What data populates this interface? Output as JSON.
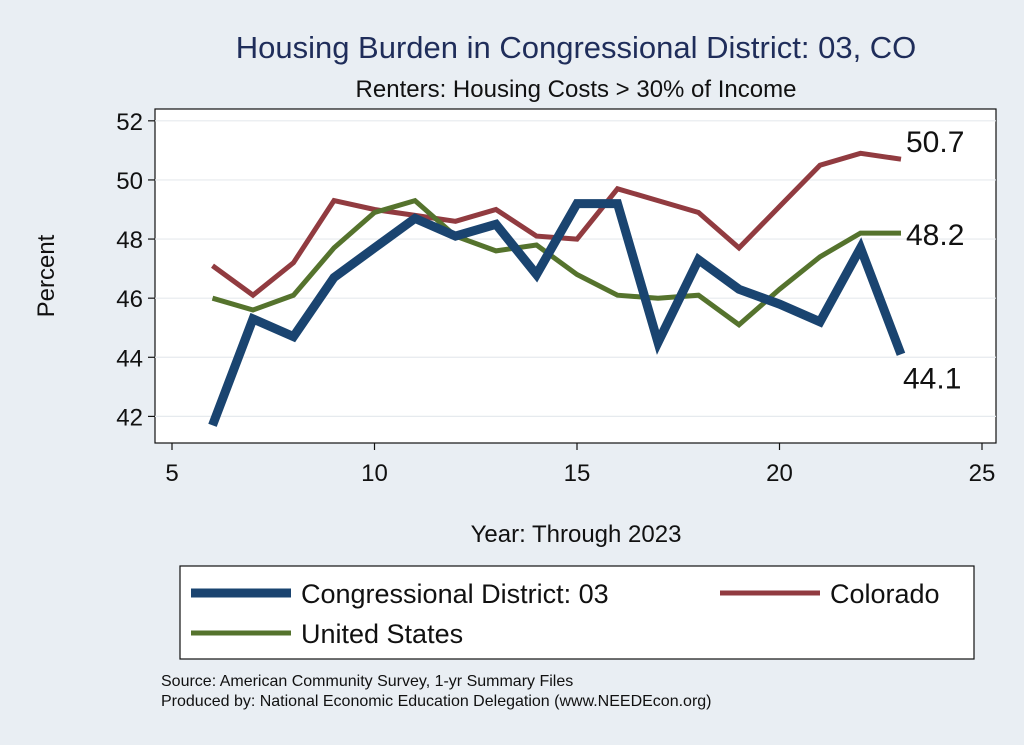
{
  "chart_data": {
    "type": "line",
    "title": "Housing Burden in Congressional District:  03, CO",
    "subtitle": "Renters: Housing Costs > 30% of Income",
    "xlabel": "Year: Through 2023",
    "ylabel": "Percent",
    "xlim": [
      5,
      25
    ],
    "ylim": [
      41.1,
      52.4
    ],
    "xticks": [
      5,
      10,
      15,
      20,
      25
    ],
    "yticks": [
      42,
      44,
      46,
      48,
      50,
      52
    ],
    "grid": true,
    "legend_position": "bottom",
    "series": [
      {
        "name": "Congressional District:  03",
        "color": "#1a4470",
        "x": [
          6,
          7,
          8,
          9,
          10,
          11,
          12,
          13,
          14,
          15,
          16,
          17,
          18,
          19,
          20,
          21,
          22,
          23
        ],
        "values": [
          41.7,
          45.3,
          44.7,
          46.7,
          47.7,
          48.7,
          48.1,
          48.5,
          46.8,
          49.2,
          49.2,
          44.5,
          47.3,
          46.3,
          45.8,
          45.2,
          47.7,
          44.1
        ],
        "end_label": "44.1"
      },
      {
        "name": "Colorado",
        "color": "#913b40",
        "x": [
          6,
          7,
          8,
          9,
          10,
          11,
          12,
          13,
          14,
          15,
          16,
          17,
          18,
          19,
          20,
          21,
          22,
          23
        ],
        "values": [
          47.1,
          46.1,
          47.2,
          49.3,
          49.0,
          48.8,
          48.6,
          49.0,
          48.1,
          48.0,
          49.7,
          49.3,
          48.9,
          47.7,
          49.1,
          50.5,
          50.9,
          50.7
        ],
        "end_label": "50.7"
      },
      {
        "name": "United States",
        "color": "#55732d",
        "x": [
          6,
          7,
          8,
          9,
          10,
          11,
          12,
          13,
          14,
          15,
          16,
          17,
          18,
          19,
          20,
          21,
          22,
          23
        ],
        "values": [
          46.0,
          45.6,
          46.1,
          47.7,
          48.9,
          49.3,
          48.1,
          47.6,
          47.8,
          46.8,
          46.1,
          46.0,
          46.1,
          45.1,
          46.3,
          47.4,
          48.2,
          48.2
        ],
        "end_label": "48.2"
      }
    ]
  },
  "footer": {
    "source": "Source: American Community Survey, 1-yr Summary Files",
    "produced_by": "Produced by: National Economic Education Delegation (www.NEEDEcon.org)"
  }
}
